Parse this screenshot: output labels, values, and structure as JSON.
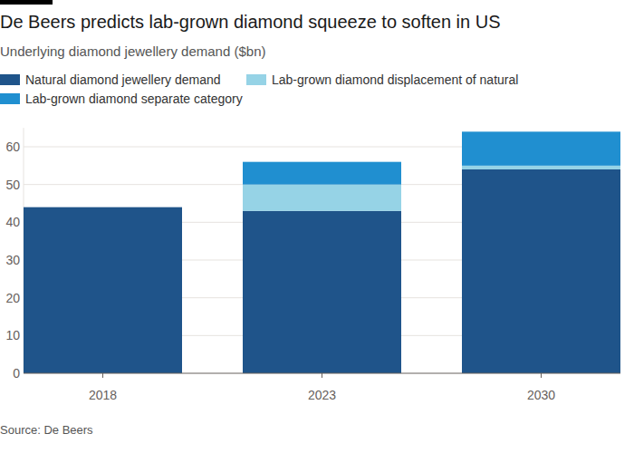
{
  "chart_data": {
    "type": "bar",
    "stacked": true,
    "title": "De Beers predicts lab-grown diamond squeeze to soften in US",
    "subtitle": "Underlying diamond jewellery demand ($bn)",
    "source": "Source: De Beers",
    "categories": [
      "2018",
      "2023",
      "2030"
    ],
    "series": [
      {
        "name": "Natural diamond jewellery demand",
        "color": "#1f548a",
        "values": [
          44,
          43,
          54
        ]
      },
      {
        "name": "Lab-grown diamond displacement of natural",
        "color": "#96d3e6",
        "values": [
          null,
          7,
          1
        ]
      },
      {
        "name": "Lab-grown diamond separate category",
        "color": "#208fd0",
        "values": [
          null,
          6,
          9
        ]
      }
    ],
    "ylim": [
      0,
      65
    ],
    "yticks": [
      0,
      10,
      20,
      30,
      40,
      50,
      60
    ],
    "grid": true,
    "legend": "top-left"
  }
}
